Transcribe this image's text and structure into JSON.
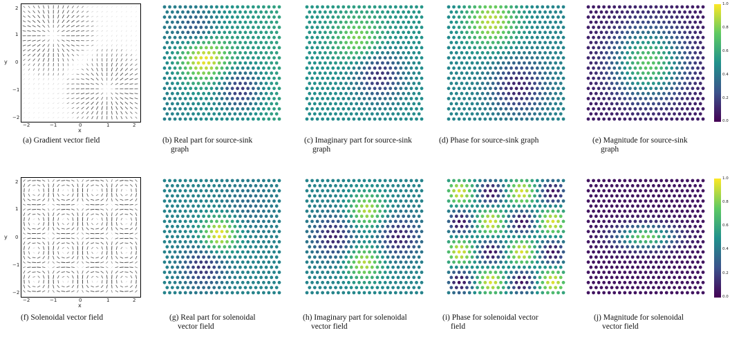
{
  "row1": {
    "captions": [
      {
        "label": "(a) Gradient vector field",
        "cont": ""
      },
      {
        "label": "(b) Real part for source-sink",
        "cont": "graph"
      },
      {
        "label": "(c) Imaginary part for source-sink",
        "cont": "graph"
      },
      {
        "label": "(d) Phase for source-sink graph",
        "cont": ""
      },
      {
        "label": "(e) Magnitude for source-sink",
        "cont": "graph"
      }
    ]
  },
  "row2": {
    "captions": [
      {
        "label": "(f) Solenoidal vector field",
        "cont": ""
      },
      {
        "label": "(g) Real part for solenoidal",
        "cont": "vector field"
      },
      {
        "label": "(h) Imaginary part for solenoidal",
        "cont": "vector field"
      },
      {
        "label": "(i) Phase for solenoidal vector",
        "cont": "field"
      },
      {
        "label": "(j) Magnitude for solenoidal",
        "cont": "vector field"
      }
    ]
  },
  "quiver_axes": {
    "xlabel": "x",
    "ylabel": "y",
    "xticks": [
      "−2",
      "−1",
      "0",
      "1",
      "2"
    ],
    "yticks": [
      "2",
      "1",
      "0",
      "−1",
      "−2"
    ]
  },
  "colorbar": {
    "ticks": [
      "1.0",
      "0.8",
      "0.6",
      "0.4",
      "0.2",
      "0.0"
    ],
    "colormap": "viridis"
  },
  "colors": {
    "viridis": [
      "#440154",
      "#3b528b",
      "#21918c",
      "#5ec962",
      "#fde725"
    ]
  }
}
